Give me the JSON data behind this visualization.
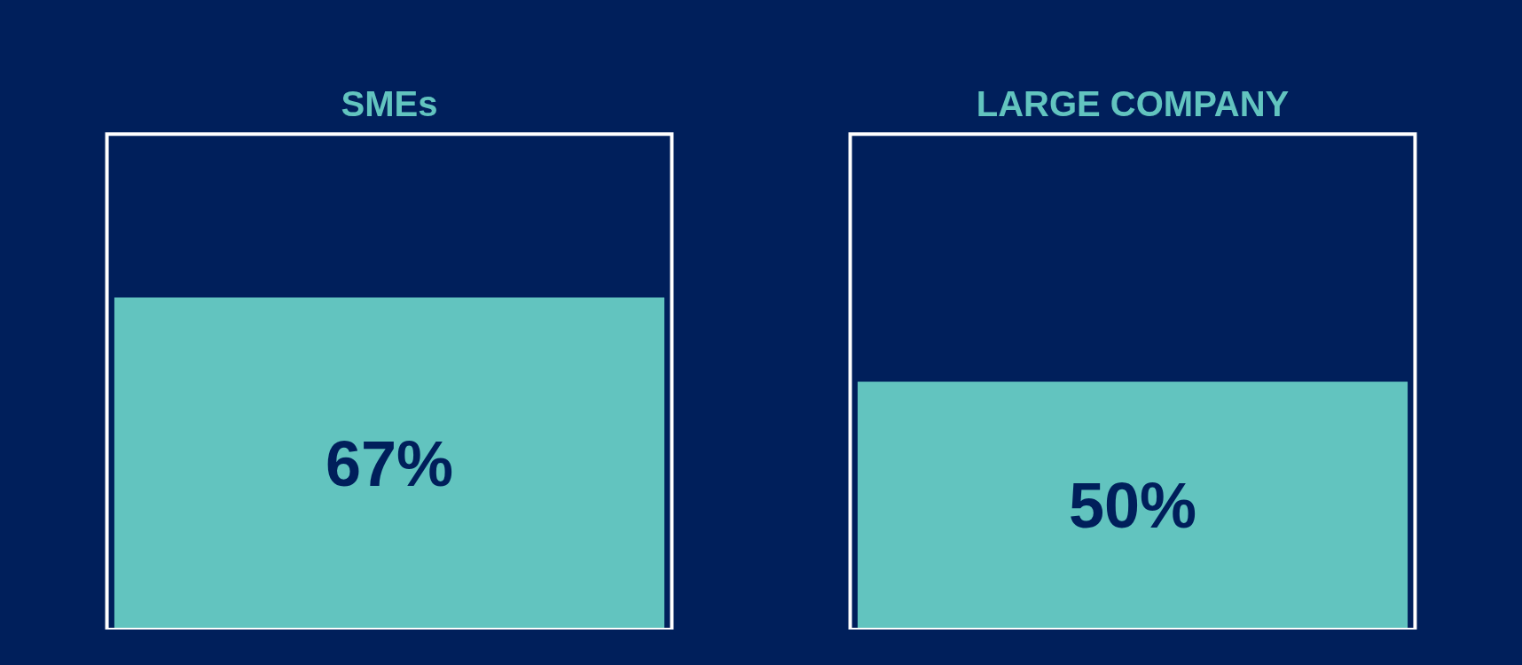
{
  "chart_data": {
    "type": "bar",
    "categories": [
      "SMEs",
      "LARGE COMPANY"
    ],
    "series": [
      {
        "color": "#62c4bf",
        "values": [
          67,
          50
        ],
        "value_labels": [
          "67%",
          "50%"
        ]
      },
      {
        "color": "#ffffff",
        "values": [
          100,
          100
        ]
      }
    ],
    "tick_labels": "x",
    "grid": false
  }
}
